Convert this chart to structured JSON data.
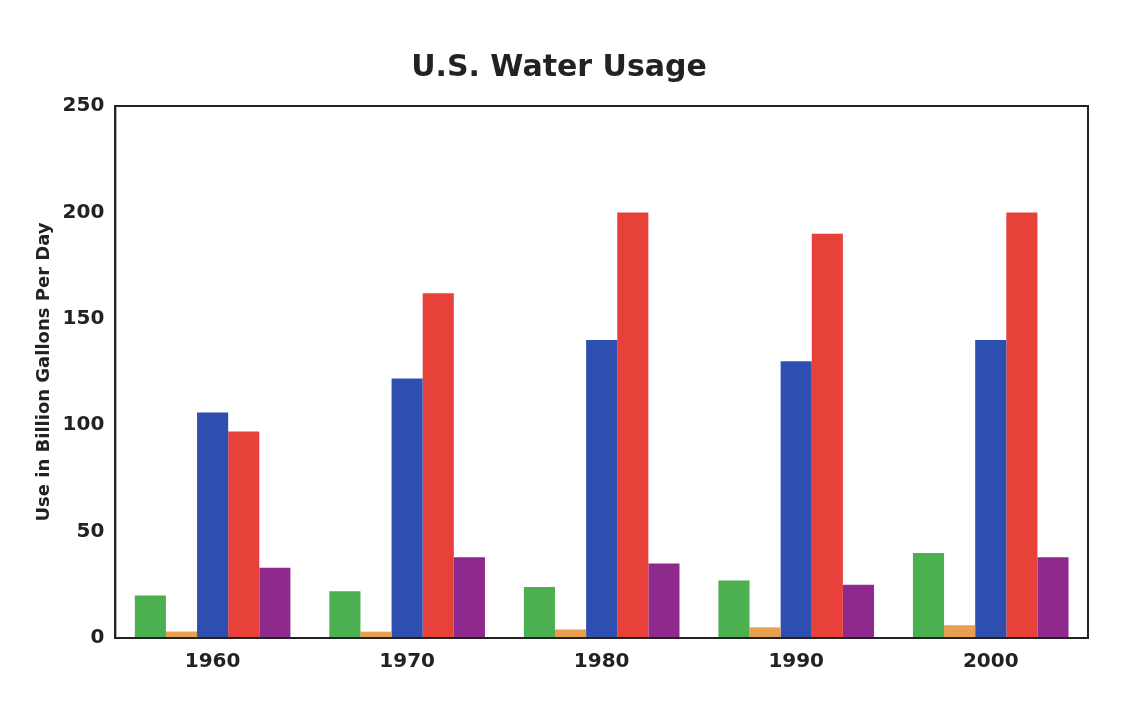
{
  "chart_data": {
    "type": "bar",
    "title": "U.S. Water Usage",
    "ylabel": "Use in Billion Gallons Per Day",
    "categories": [
      "1960",
      "1970",
      "1980",
      "1990",
      "2000"
    ],
    "series": [
      {
        "color": "#4caf50",
        "values": [
          20,
          22,
          24,
          27,
          40
        ]
      },
      {
        "color": "#e8a050",
        "values": [
          3,
          3,
          4,
          5,
          6
        ]
      },
      {
        "color": "#2e4fb0",
        "values": [
          106,
          122,
          140,
          130,
          140
        ]
      },
      {
        "color": "#e8413a",
        "values": [
          97,
          162,
          200,
          190,
          200
        ]
      },
      {
        "color": "#8e2a8e",
        "values": [
          33,
          38,
          35,
          25,
          38
        ]
      }
    ],
    "ylim": [
      0,
      250
    ],
    "yticks": [
      0,
      50,
      100,
      150,
      200,
      250
    ],
    "grid": false,
    "legend": false
  }
}
